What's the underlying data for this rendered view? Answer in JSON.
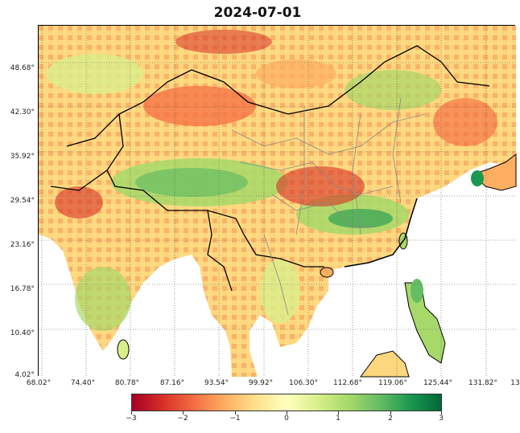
{
  "title": "2024-07-01",
  "lat_labels": [
    "48.68°",
    "42.30°",
    "35.92°",
    "29.54°",
    "23.16°",
    "16.78°",
    "10.40°",
    "4.02°"
  ],
  "lon_labels": [
    "68.02°",
    "74.40°",
    "80.78°",
    "87.16°",
    "93.54°",
    "99.92°",
    "106.30°",
    "112.68°",
    "119.06°",
    "125.44°",
    "131.82°",
    "13"
  ],
  "colorbar": {
    "labels": [
      "−3",
      "−2",
      "−1",
      "0",
      "1",
      "2",
      "3"
    ],
    "colors": [
      "#a50026",
      "#d73027",
      "#f46d43",
      "#fdae61",
      "#fee08b",
      "#ffffbf",
      "#d9ef8b",
      "#a6d96a",
      "#66bd63",
      "#1a9850",
      "#006837"
    ]
  }
}
